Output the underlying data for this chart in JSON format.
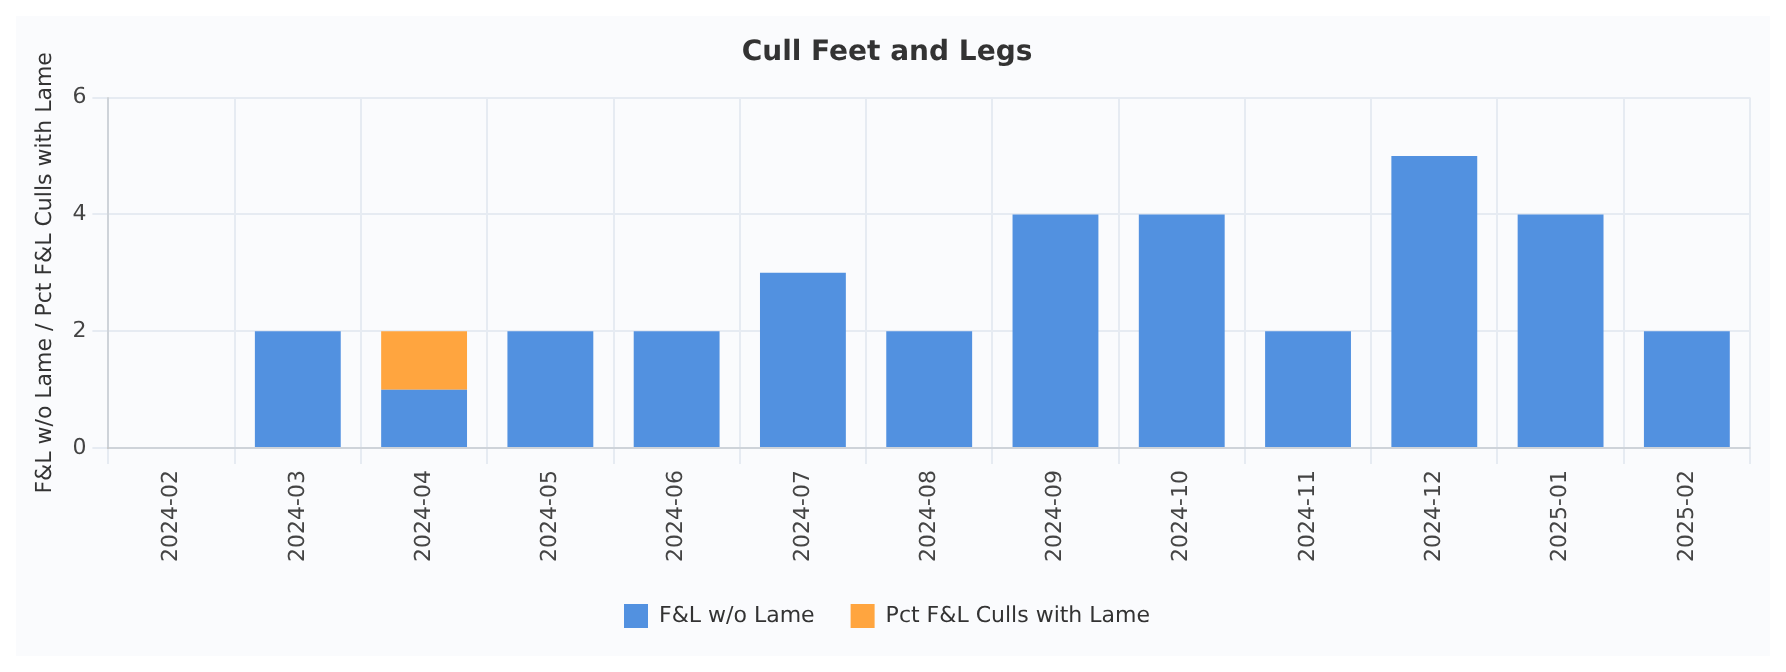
{
  "chart_data": {
    "type": "bar",
    "title": "Cull Feet and Legs",
    "ylabel": "F&L w/o Lame / Pct F&L Culls with Lame",
    "categories": [
      "2024-02",
      "2024-03",
      "2024-04",
      "2024-05",
      "2024-06",
      "2024-07",
      "2024-08",
      "2024-09",
      "2024-10",
      "2024-11",
      "2024-12",
      "2025-01",
      "2025-02"
    ],
    "series": [
      {
        "name": "F&L w/o Lame",
        "color": "#5291e0",
        "values": [
          0,
          2,
          1,
          2,
          2,
          3,
          2,
          4,
          4,
          2,
          5,
          4,
          2
        ]
      },
      {
        "name": "Pct F&L Culls with Lame",
        "color": "#ffa53f",
        "values": [
          null,
          null,
          1,
          null,
          null,
          null,
          null,
          null,
          null,
          null,
          null,
          null,
          null
        ]
      }
    ],
    "stacked": true,
    "ylim": [
      0,
      6
    ],
    "yticks": [
      0,
      2,
      4,
      6
    ],
    "grid": true,
    "legend": "bottom"
  }
}
